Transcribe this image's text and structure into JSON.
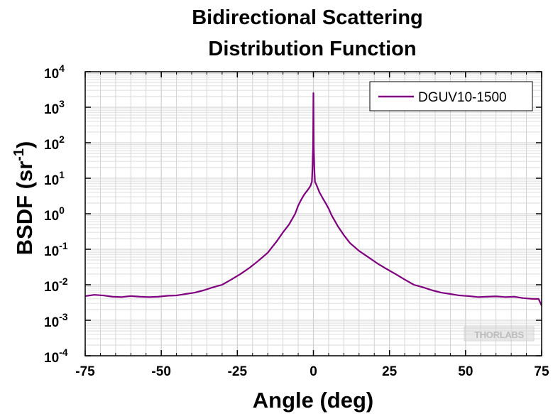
{
  "chart_data": {
    "type": "line",
    "title_lines": [
      "Bidirectional Scattering",
      "Distribution Function"
    ],
    "xlabel": "Angle (deg)",
    "ylabel_main": "BSDF (sr",
    "ylabel_sup": "-1",
    "ylabel_close": ")",
    "xlim": [
      -75,
      75
    ],
    "ylim": [
      0.0001,
      10000
    ],
    "yscale": "log",
    "grid": true,
    "legend_position": "top-right",
    "x_ticks": [
      -75,
      -50,
      -25,
      0,
      25,
      50,
      75
    ],
    "x_tick_labels": [
      "-75",
      "-50",
      "-25",
      "0",
      "25",
      "50",
      "75"
    ],
    "y_ticks": [
      {
        "value": 10000,
        "base": "10",
        "exp": "4"
      },
      {
        "value": 1000,
        "base": "10",
        "exp": "3"
      },
      {
        "value": 100,
        "base": "10",
        "exp": "2"
      },
      {
        "value": 10,
        "base": "10",
        "exp": "1"
      },
      {
        "value": 1,
        "base": "10",
        "exp": "0"
      },
      {
        "value": 0.1,
        "base": "10",
        "exp": "-1"
      },
      {
        "value": 0.01,
        "base": "10",
        "exp": "-2"
      },
      {
        "value": 0.001,
        "base": "10",
        "exp": "-3"
      },
      {
        "value": 0.0001,
        "base": "10",
        "exp": "-4"
      }
    ],
    "series": [
      {
        "name": "DGUV10-1500",
        "color": "#800080",
        "x": [
          -75,
          -72,
          -69,
          -66,
          -63,
          -60,
          -57,
          -54,
          -51,
          -48,
          -45,
          -42,
          -39,
          -36,
          -33,
          -30,
          -27,
          -24,
          -21,
          -18,
          -15,
          -12,
          -10,
          -8,
          -6,
          -5,
          -4,
          -3,
          -2,
          -1,
          -0.5,
          -0.3,
          -0.1,
          0,
          0.1,
          0.3,
          0.5,
          1,
          2,
          3,
          4,
          5,
          6,
          8,
          10,
          12,
          15,
          18,
          21,
          24,
          27,
          30,
          33,
          36,
          39,
          42,
          45,
          48,
          51,
          54,
          57,
          60,
          63,
          66,
          69,
          72,
          74,
          75
        ],
        "y": [
          0.0048,
          0.0052,
          0.005,
          0.0046,
          0.0045,
          0.0048,
          0.0046,
          0.0045,
          0.0046,
          0.0049,
          0.005,
          0.0055,
          0.006,
          0.007,
          0.0085,
          0.01,
          0.014,
          0.02,
          0.03,
          0.048,
          0.08,
          0.17,
          0.3,
          0.5,
          1.0,
          1.7,
          2.5,
          3.5,
          4.5,
          6.0,
          8.0,
          20,
          80,
          2500,
          80,
          20,
          8.0,
          6.5,
          4.0,
          2.8,
          2.0,
          1.4,
          0.9,
          0.45,
          0.25,
          0.15,
          0.09,
          0.06,
          0.04,
          0.028,
          0.02,
          0.014,
          0.01,
          0.0085,
          0.007,
          0.006,
          0.0055,
          0.005,
          0.0048,
          0.0045,
          0.0046,
          0.0047,
          0.0045,
          0.0046,
          0.0042,
          0.004,
          0.004,
          0.0026
        ]
      }
    ],
    "watermark": "THORLABS"
  }
}
